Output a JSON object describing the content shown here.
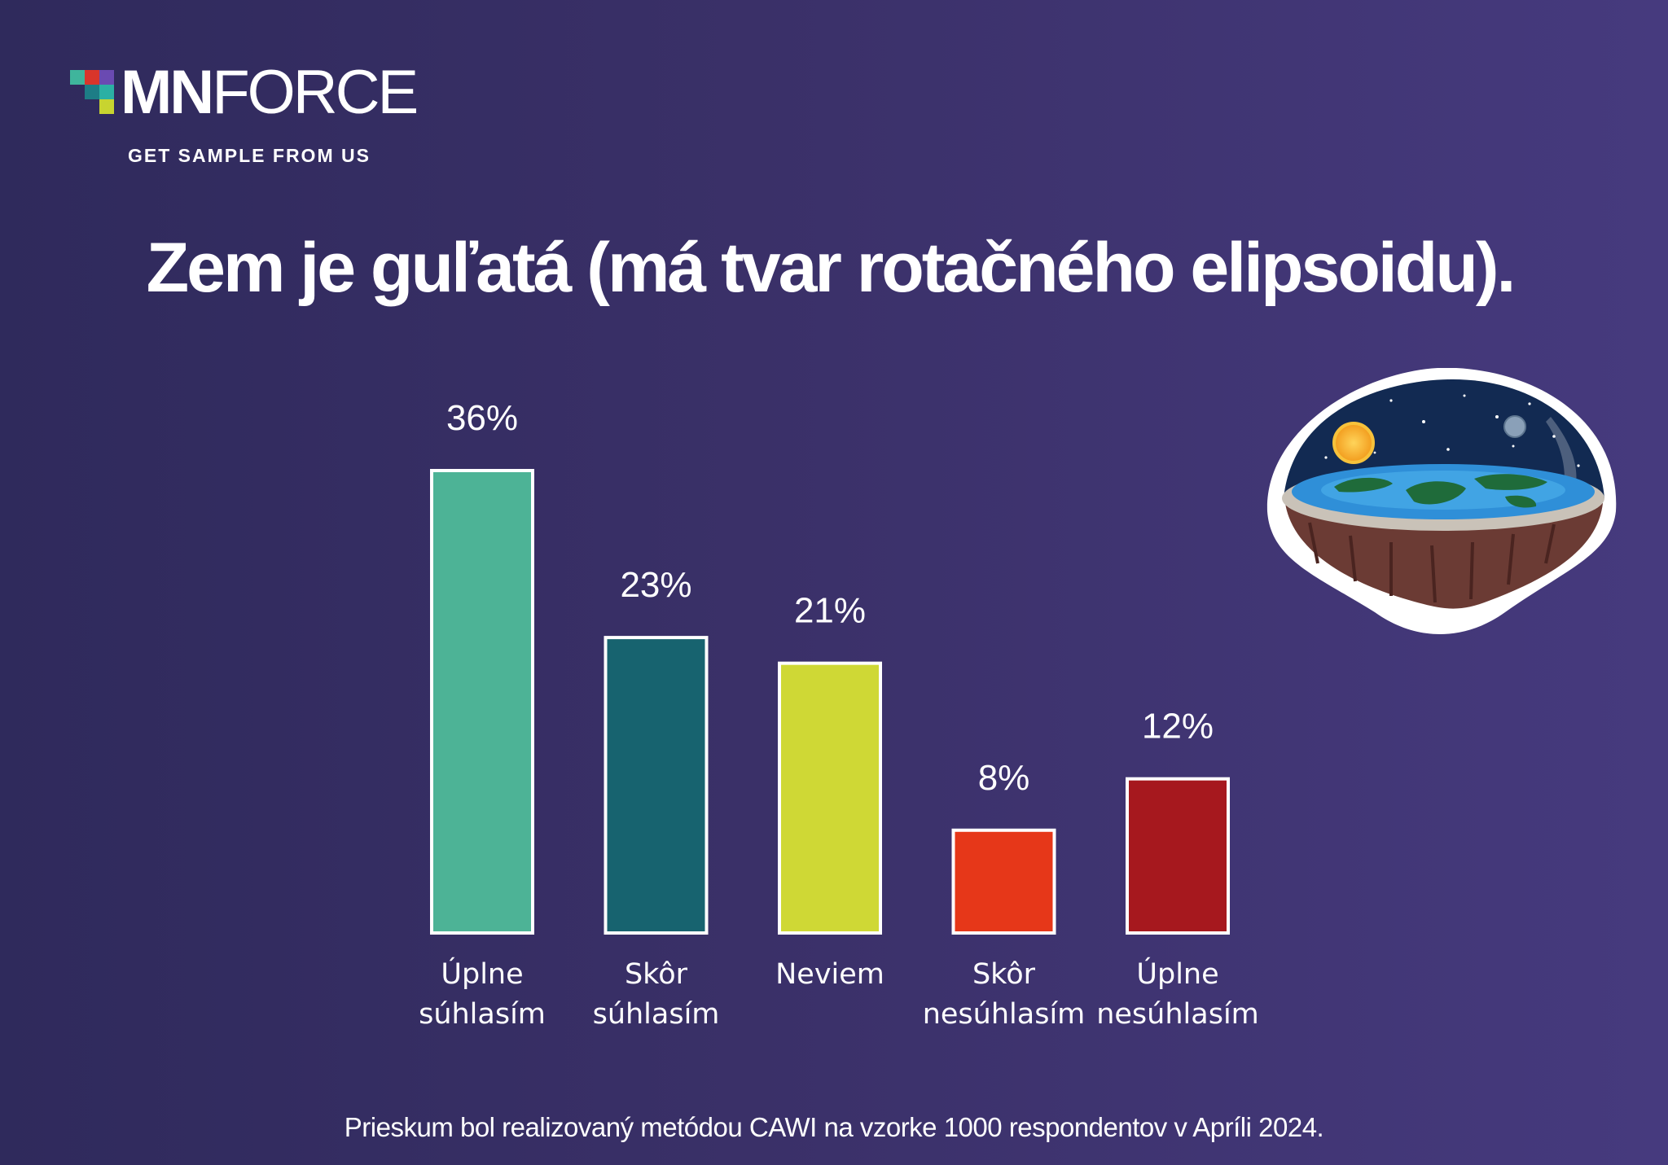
{
  "brand": {
    "logo_bold": "MN",
    "logo_light": "FORCE",
    "tagline": "GET SAMPLE FROM US",
    "square_colors": [
      "#3fb59c",
      "#d9352b",
      "#6a4ab2",
      "#1d7d86",
      "#2bb0a4",
      "#c8d430"
    ]
  },
  "chart_data": {
    "type": "bar",
    "title": "Zem je guľatá (má tvar rotačného elipsoidu).",
    "categories": [
      [
        "Úplne",
        "súhlasím"
      ],
      [
        "Skôr",
        "súhlasím"
      ],
      [
        "Neviem"
      ],
      [
        "Skôr",
        "nesúhlasím"
      ],
      [
        "Úplne",
        "nesúhlasím"
      ]
    ],
    "values": [
      36,
      23,
      21,
      8,
      12
    ],
    "value_labels": [
      "36%",
      "23%",
      "21%",
      "8%",
      "12%"
    ],
    "colors": [
      "#4db396",
      "#17636f",
      "#cfd835",
      "#e63719",
      "#a6181e"
    ],
    "ylim": [
      0,
      36
    ],
    "grid": false,
    "legend": "none"
  },
  "illustration": {
    "icon": "flat-earth-dome-icon"
  },
  "footnote": "Prieskum bol realizovaný metódou CAWI na vzorke 1000 respondentov v Apríli 2024."
}
